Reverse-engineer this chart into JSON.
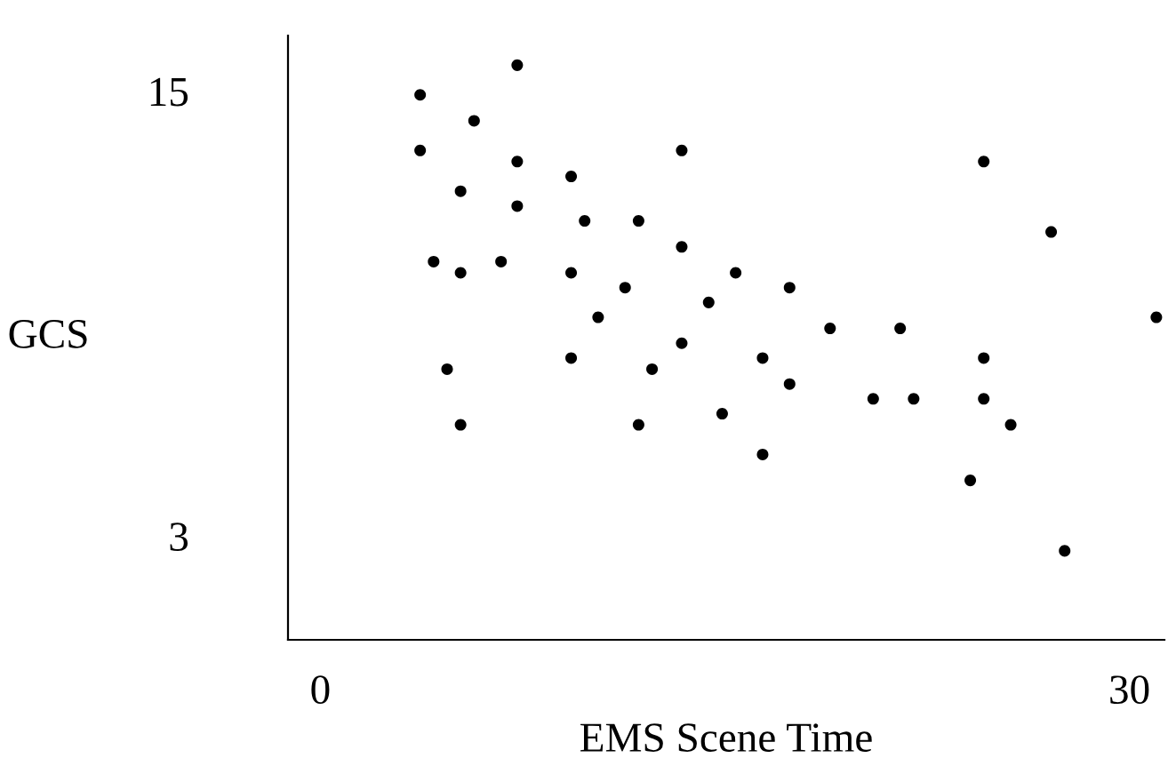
{
  "chart_data": {
    "type": "scatter",
    "xlabel": "EMS Scene Time",
    "ylabel": "GCS",
    "xlim": [
      -1.2,
      31.3
    ],
    "ylim": [
      0.2,
      16.5
    ],
    "xticks": [
      0,
      30
    ],
    "yticks": [
      3,
      15
    ],
    "grid": false,
    "legend": false,
    "marker": "circle",
    "series": [
      {
        "color": "#000000",
        "x": [
          7.3,
          3.7,
          5.7,
          3.7,
          7.3,
          13.4,
          9.3,
          5.2,
          7.3,
          9.8,
          11.8,
          13.4,
          4.2,
          5.2,
          6.7,
          9.3,
          11.3,
          14.4,
          10.3,
          13.4,
          9.3,
          12.3,
          4.7,
          5.2,
          11.8,
          14.9,
          24.6,
          27.1,
          15.4,
          17.4,
          18.9,
          21.5,
          16.4,
          24.6,
          17.4,
          20.5,
          22.0,
          24.6,
          25.6,
          16.4,
          24.1,
          27.6,
          31.0
        ],
        "values": [
          15.7,
          14.9,
          14.2,
          13.4,
          13.1,
          13.4,
          12.7,
          12.3,
          11.9,
          11.5,
          11.5,
          10.8,
          10.4,
          10.1,
          10.4,
          10.1,
          9.7,
          9.3,
          8.9,
          8.2,
          7.8,
          7.5,
          7.5,
          6.0,
          6.0,
          6.3,
          13.1,
          11.2,
          10.1,
          9.7,
          8.6,
          8.6,
          7.8,
          7.8,
          7.1,
          6.7,
          6.7,
          6.7,
          6.0,
          5.2,
          4.5,
          2.6,
          8.9
        ]
      }
    ]
  }
}
